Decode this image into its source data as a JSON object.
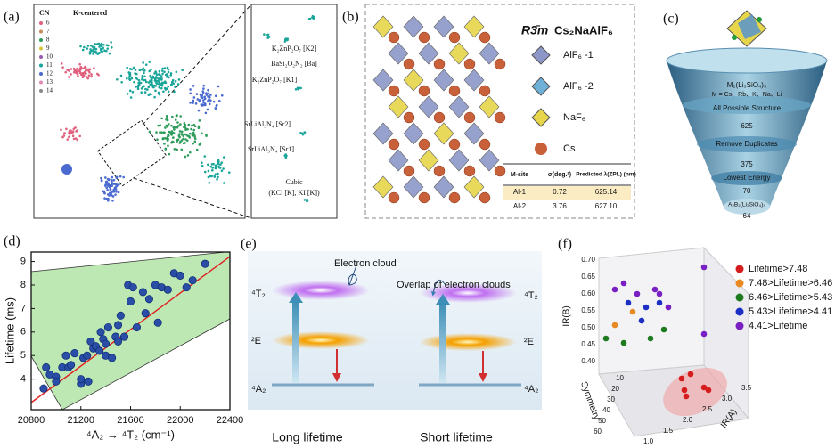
{
  "panel_labels": [
    "(a)",
    "(b)",
    "(c)",
    "(d)",
    "(e)",
    "(f)"
  ],
  "panel_a": {
    "title": "K-centered",
    "legend_title": "CN",
    "legend": [
      "6",
      "7",
      "8",
      "9",
      "10",
      "11",
      "12",
      "13",
      "14"
    ],
    "zoom_labels": [
      "K₂ZnP₂O₇ [K2]",
      "BaSi₂O₂N₂ [Ba]",
      "K₂ZnP₂O₇ [K1]",
      "SrLiAl₃N₄ [Sr2]",
      "SrLiAl₃N₄ [Sr1]",
      "Cubic",
      "(KCl [K], KI [K])"
    ]
  },
  "panel_b": {
    "space_group": "R3̄m",
    "formula": "Cs₂NaAlF₆",
    "legend": [
      "AlF₆ -1",
      "AlF₆ -2",
      "NaF₆",
      "Cs"
    ],
    "table": {
      "header": [
        "M-site",
        "σ(deg.²)",
        "Predicted λ(ZPL) (nm)"
      ],
      "rows": [
        [
          "Al-1",
          "0.72",
          "625.14"
        ],
        [
          "Al-2",
          "3.76",
          "627.10"
        ]
      ]
    }
  },
  "panel_c": {
    "formula": "M₂(Li₃SiO₄)₃",
    "elements": "M = Cs、Rb、K、Na、Li",
    "stages": [
      {
        "label": "All Possible Structure",
        "count": "625"
      },
      {
        "label": "Remove Duplicates",
        "count": "375"
      },
      {
        "label": "Lowest Energy",
        "count": "70"
      },
      {
        "label": "A₂B₂(Li₃SiO₄)₃",
        "count": "64"
      }
    ]
  },
  "panel_d": {
    "type": "scatter",
    "xlabel": "⁴A₂ → ⁴T₂ (cm⁻¹)",
    "ylabel": "Lifetime (ms)",
    "color": "#2a4da6",
    "x": [
      20900,
      20920,
      20950,
      21000,
      21000,
      21050,
      21080,
      21100,
      21120,
      21150,
      21200,
      21200,
      21220,
      21250,
      21260,
      21280,
      21300,
      21320,
      21350,
      21360,
      21380,
      21400,
      21400,
      21420,
      21450,
      21480,
      21500,
      21500,
      21520,
      21550,
      21580,
      21600,
      21620,
      21650,
      21700,
      21720,
      21750,
      21800,
      21820,
      21850,
      21900,
      21950,
      22000,
      22050,
      22100,
      22200
    ],
    "y": [
      3.6,
      4.5,
      4.2,
      4.1,
      3.9,
      4.5,
      5.0,
      4.5,
      4.6,
      5.1,
      3.8,
      4.0,
      4.9,
      5.0,
      3.9,
      5.6,
      5.3,
      5.4,
      5.2,
      6.0,
      5.7,
      5.5,
      5.0,
      6.2,
      4.9,
      5.8,
      6.3,
      5.6,
      6.7,
      5.8,
      8.0,
      7.3,
      7.9,
      6.2,
      7.7,
      6.8,
      7.4,
      8.0,
      6.4,
      7.9,
      7.8,
      8.5,
      8.4,
      7.9,
      8.2,
      8.9
    ],
    "xlim": [
      20800,
      22400
    ],
    "ylim": [
      2.7,
      9.4
    ],
    "xticks": [
      20800,
      21200,
      21600,
      22000,
      22400
    ],
    "yticks": [
      4,
      5,
      6,
      7,
      8,
      9
    ]
  },
  "panel_e": {
    "annotations": [
      "Electron cloud",
      "Overlap of electron clouds"
    ],
    "levels_left": [
      "⁴T₂",
      "²E",
      "⁴A₂"
    ],
    "levels_right": [
      "⁴T₂",
      "²E",
      "⁴A₂"
    ],
    "captions": [
      "Long lifetime",
      "Short lifetime"
    ]
  },
  "panel_f": {
    "legend": [
      {
        "name": "Lifetime>7.48",
        "color": "#d61d1d"
      },
      {
        "name": "7.48>Lifetime>6.46",
        "color": "#e88a24"
      },
      {
        "name": "6.46>Lifetime>5.43",
        "color": "#1f7a1f"
      },
      {
        "name": "5.43>Lifetime>4.41",
        "color": "#1b2fc4"
      },
      {
        "name": "4.41>Lifetime",
        "color": "#7a1fc4"
      }
    ],
    "axis_labels": {
      "z": "IR(B)",
      "x": "Symmetry",
      "y": "IR(A)"
    },
    "zticks": [
      "0.70",
      "0.65",
      "0.60",
      "0.55",
      "0.50",
      "0.45",
      "0.40"
    ],
    "xticks": [
      "10",
      "20",
      "30",
      "40",
      "50",
      "60"
    ],
    "yticks": [
      "1.0",
      "1.5",
      "2.0",
      "2.5",
      "3.0",
      "3.5"
    ]
  }
}
